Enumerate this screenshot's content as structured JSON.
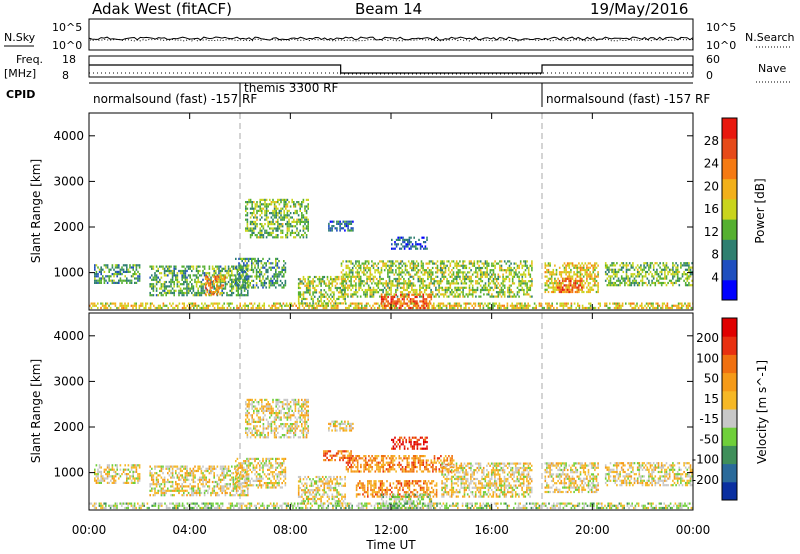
{
  "header": {
    "station": "Adak West (fitACF)",
    "beam": "Beam 14",
    "date": "19/May/2016"
  },
  "top_panels": {
    "nsky_label": "N.Sky",
    "nsearch_label": "N.Search",
    "log_top": "10^5",
    "log_bottom": "10^0",
    "freq_label": "Freq.",
    "freq_unit": "[MHz]",
    "freq_top": "18",
    "freq_bottom": "8",
    "nave_label": "Nave",
    "nave_top": "60",
    "nave_bottom": "0",
    "cpid_label": "CPID",
    "cpid_segments": [
      {
        "label": "normalsound (fast) -157 RF",
        "start": 0,
        "end": 6
      },
      {
        "label": "themis 3300 RF",
        "start": 6,
        "end": 18
      },
      {
        "label": "normalsound (fast) -157 RF",
        "start": 18,
        "end": 24
      }
    ]
  },
  "chart_data": [
    {
      "type": "heatmap",
      "title": "",
      "parameter": "Power",
      "ylabel": "Slant Range [km]",
      "xlabel": "",
      "ylim": [
        180,
        4500
      ],
      "xlim": [
        0,
        24
      ],
      "y_ticks": [
        "1000",
        "2000",
        "3000",
        "4000"
      ],
      "colorbar": {
        "label": "Power [dB]",
        "ticks": [
          "4",
          "8",
          "12",
          "16",
          "20",
          "24",
          "28"
        ],
        "range": [
          0,
          30
        ],
        "colors": [
          "#0000ff",
          "#1f4fbf",
          "#2f7f70",
          "#55b030",
          "#c9d41c",
          "#f2b01a",
          "#f57a12",
          "#e64a19",
          "#e8180e"
        ]
      },
      "echo_regions": [
        {
          "t0": 0.0,
          "t1": 24.0,
          "r0": 200,
          "r1": 330,
          "level": 0.55
        },
        {
          "t0": 0.2,
          "t1": 2.0,
          "r0": 750,
          "r1": 1150,
          "level": 0.3
        },
        {
          "t0": 2.4,
          "t1": 6.3,
          "r0": 480,
          "r1": 1150,
          "level": 0.35
        },
        {
          "t0": 4.6,
          "t1": 5.4,
          "r0": 500,
          "r1": 900,
          "level": 0.7
        },
        {
          "t0": 5.8,
          "t1": 7.8,
          "r0": 650,
          "r1": 1300,
          "level": 0.3
        },
        {
          "t0": 6.2,
          "t1": 8.7,
          "r0": 1750,
          "r1": 2600,
          "level": 0.4
        },
        {
          "t0": 8.3,
          "t1": 10.2,
          "r0": 300,
          "r1": 900,
          "level": 0.45
        },
        {
          "t0": 9.5,
          "t1": 10.5,
          "r0": 1900,
          "r1": 2100,
          "level": 0.2
        },
        {
          "t0": 10.0,
          "t1": 17.6,
          "r0": 450,
          "r1": 1250,
          "level": 0.45
        },
        {
          "t0": 11.6,
          "t1": 13.6,
          "r0": 200,
          "r1": 500,
          "level": 0.85
        },
        {
          "t0": 12.0,
          "t1": 13.4,
          "r0": 1500,
          "r1": 1750,
          "level": 0.15
        },
        {
          "t0": 18.1,
          "t1": 20.2,
          "r0": 550,
          "r1": 1200,
          "level": 0.55
        },
        {
          "t0": 18.6,
          "t1": 19.6,
          "r0": 550,
          "r1": 850,
          "level": 0.85
        },
        {
          "t0": 20.5,
          "t1": 24.0,
          "r0": 700,
          "r1": 1200,
          "level": 0.4
        }
      ]
    },
    {
      "type": "heatmap",
      "title": "",
      "parameter": "Velocity",
      "ylabel": "Slant Range [km]",
      "xlabel": "Time UT",
      "ylim": [
        180,
        4500
      ],
      "xlim": [
        0,
        24
      ],
      "y_ticks": [
        "1000",
        "2000",
        "3000",
        "4000"
      ],
      "x_ticks": [
        "00:00",
        "04:00",
        "08:00",
        "12:00",
        "16:00",
        "20:00",
        "00:00"
      ],
      "colorbar": {
        "label": "Velocity [m s^-1]",
        "ticks": [
          "200",
          "100",
          "50",
          "15",
          "-15",
          "-50",
          "-100",
          "-200"
        ],
        "range": [
          -250,
          250
        ],
        "colors": [
          "#0a2fa0",
          "#2a6a9a",
          "#3f8f5a",
          "#6fcf3a",
          "#c8c8c8",
          "#f6b826",
          "#f59a18",
          "#f07010",
          "#e83010",
          "#e00000"
        ]
      },
      "echo_regions": [
        {
          "t0": 0.0,
          "t1": 24.0,
          "r0": 200,
          "r1": 330,
          "level": 0.4
        },
        {
          "t0": 0.2,
          "t1": 2.0,
          "r0": 750,
          "r1": 1150,
          "level": 0.5
        },
        {
          "t0": 2.4,
          "t1": 6.3,
          "r0": 480,
          "r1": 1150,
          "level": 0.5
        },
        {
          "t0": 5.8,
          "t1": 7.8,
          "r0": 650,
          "r1": 1300,
          "level": 0.5
        },
        {
          "t0": 6.2,
          "t1": 8.7,
          "r0": 1750,
          "r1": 2600,
          "level": 0.5
        },
        {
          "t0": 8.3,
          "t1": 10.2,
          "r0": 300,
          "r1": 900,
          "level": 0.5
        },
        {
          "t0": 9.5,
          "t1": 10.5,
          "r0": 1900,
          "r1": 2100,
          "level": 0.5
        },
        {
          "t0": 9.3,
          "t1": 10.4,
          "r0": 1250,
          "r1": 1450,
          "level": 0.75
        },
        {
          "t0": 10.2,
          "t1": 14.5,
          "r0": 1000,
          "r1": 1350,
          "level": 0.72
        },
        {
          "t0": 10.6,
          "t1": 13.8,
          "r0": 450,
          "r1": 800,
          "level": 0.7
        },
        {
          "t0": 12.0,
          "t1": 13.4,
          "r0": 1500,
          "r1": 1750,
          "level": 0.95
        },
        {
          "t0": 11.6,
          "t1": 13.6,
          "r0": 200,
          "r1": 500,
          "level": 0.35
        },
        {
          "t0": 14.0,
          "t1": 17.6,
          "r0": 450,
          "r1": 1200,
          "level": 0.5
        },
        {
          "t0": 18.1,
          "t1": 20.2,
          "r0": 550,
          "r1": 1200,
          "level": 0.5
        },
        {
          "t0": 20.5,
          "t1": 24.0,
          "r0": 700,
          "r1": 1200,
          "level": 0.5
        }
      ]
    }
  ]
}
